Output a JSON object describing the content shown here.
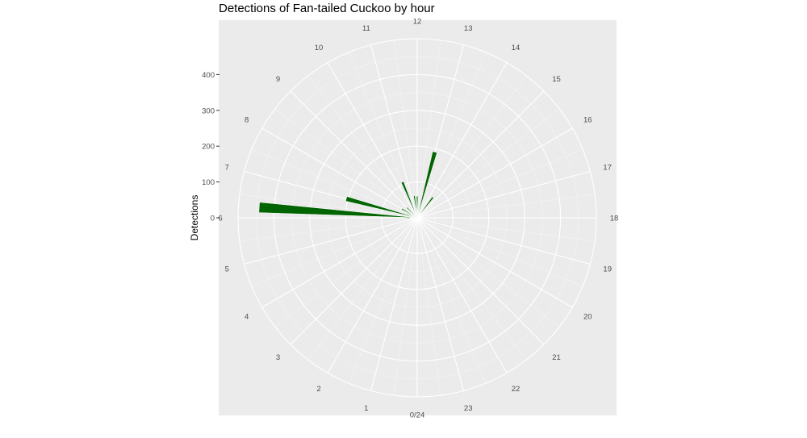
{
  "chart_data": {
    "type": "bar",
    "coord": "polar",
    "title": "Detections of Fan-tailed Cuckoo by hour",
    "xlabel": "",
    "ylabel": "Detections",
    "bar_color": "#006400",
    "panel_background": "#EBEBEB",
    "grid": true,
    "categories": [
      "0/24",
      "1",
      "2",
      "3",
      "4",
      "5",
      "6",
      "7",
      "8",
      "9",
      "10",
      "11",
      "12",
      "13",
      "14",
      "15",
      "16",
      "17",
      "18",
      "19",
      "20",
      "21",
      "22",
      "23"
    ],
    "values": [
      0,
      0,
      0,
      0,
      0,
      0,
      0,
      0,
      0,
      0,
      0,
      0,
      0,
      0,
      0,
      0,
      0,
      0,
      0,
      0,
      0,
      0,
      0,
      0
    ],
    "bars": [
      {
        "hour": 5.75,
        "value": 28
      },
      {
        "hour": 6.0,
        "value": 3
      },
      {
        "hour": 6.25,
        "value": 442
      },
      {
        "hour": 6.5,
        "value": 20
      },
      {
        "hour": 6.75,
        "value": 22
      },
      {
        "hour": 7.0,
        "value": 205
      },
      {
        "hour": 7.25,
        "value": 30
      },
      {
        "hour": 7.5,
        "value": 8
      },
      {
        "hour": 7.75,
        "value": 6
      },
      {
        "hour": 8.0,
        "value": 50
      },
      {
        "hour": 8.25,
        "value": 15
      },
      {
        "hour": 8.5,
        "value": 8
      },
      {
        "hour": 8.75,
        "value": 6
      },
      {
        "hour": 9.0,
        "value": 40
      },
      {
        "hour": 9.25,
        "value": 8
      },
      {
        "hour": 9.5,
        "value": 5
      },
      {
        "hour": 10.0,
        "value": 5
      },
      {
        "hour": 10.5,
        "value": 108
      },
      {
        "hour": 11.0,
        "value": 6
      },
      {
        "hour": 11.5,
        "value": 62
      },
      {
        "hour": 12.0,
        "value": 60
      },
      {
        "hour": 12.5,
        "value": 6
      },
      {
        "hour": 13.0,
        "value": 190
      },
      {
        "hour": 13.5,
        "value": 3
      },
      {
        "hour": 14.0,
        "value": 4
      },
      {
        "hour": 14.5,
        "value": 72
      },
      {
        "hour": 15.0,
        "value": 5
      },
      {
        "hour": 16.0,
        "value": 4
      }
    ],
    "ylim": [
      0,
      500
    ],
    "y_ticks": [
      0,
      100,
      200,
      300,
      400
    ],
    "y_tick_labels": [
      "0",
      "100",
      "200",
      "300",
      "400"
    ]
  }
}
